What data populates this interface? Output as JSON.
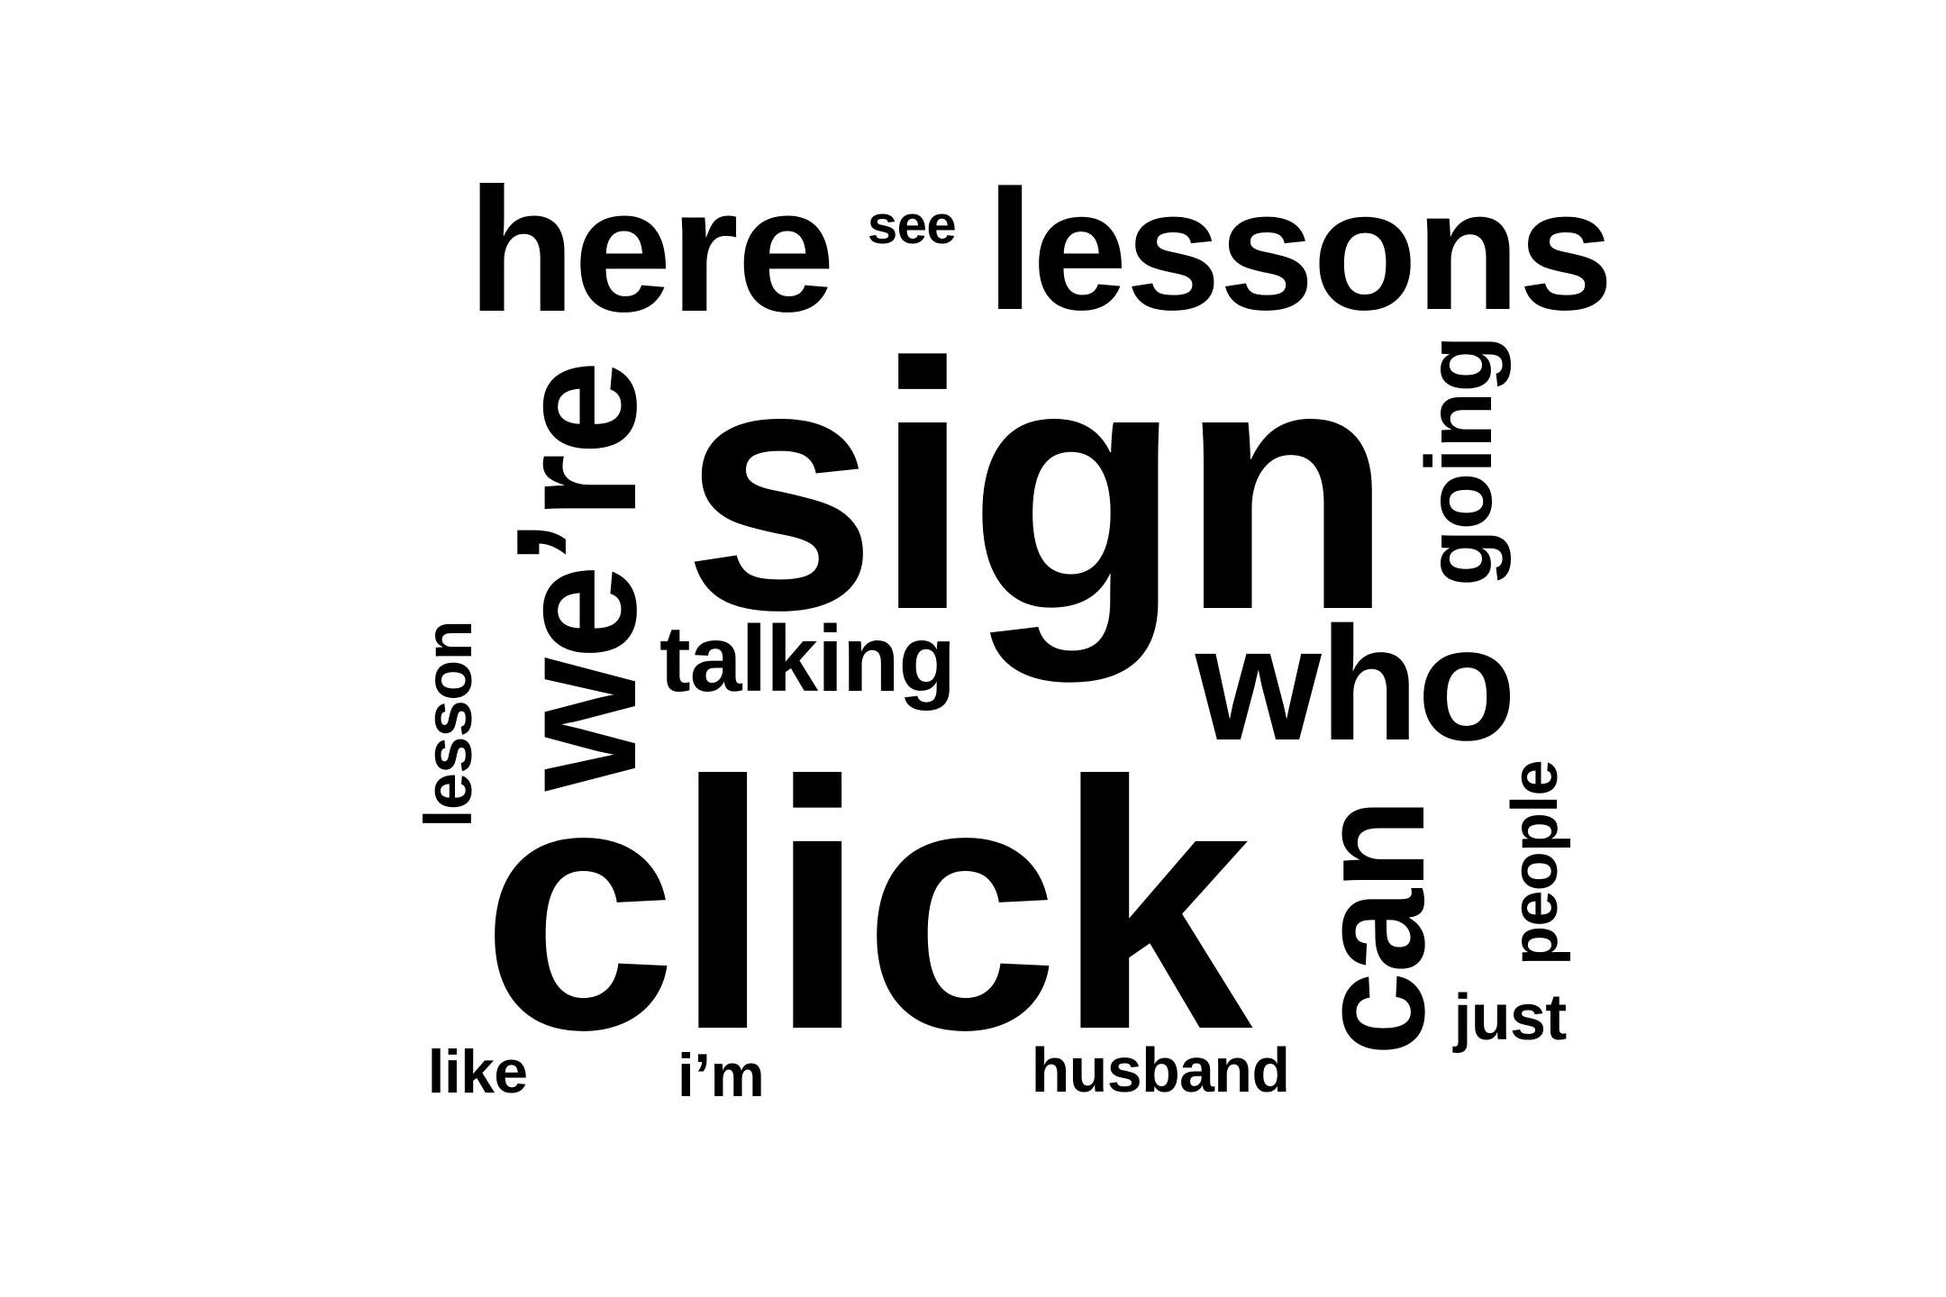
{
  "word_cloud": {
    "words": {
      "here": "here",
      "see": "see",
      "lessons": "lessons",
      "sign": "sign",
      "were": "we’re",
      "going": "going",
      "talking": "talking",
      "who": "who",
      "lesson": "lesson",
      "click": "click",
      "can": "can",
      "people": "people",
      "just": "just",
      "like": "like",
      "im": "i’m",
      "husband": "husband"
    },
    "colors": {
      "text": "#000000",
      "background": "#ffffff"
    }
  }
}
